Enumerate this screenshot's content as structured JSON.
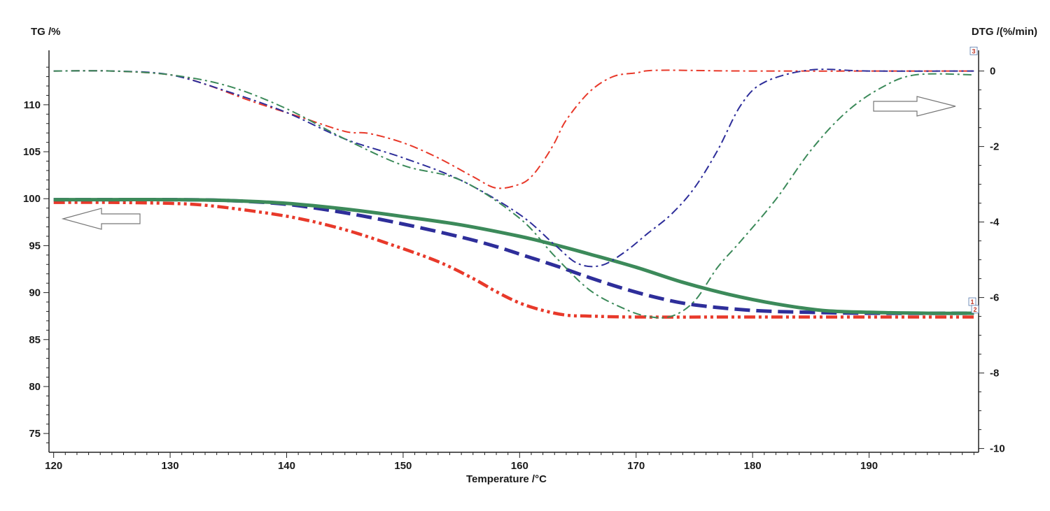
{
  "chart_data": {
    "type": "line",
    "title": "",
    "xlabel": "Temperature /°C",
    "ylabel": "TG /%",
    "y2label": "DTG /(%/min)",
    "xlim": [
      119.6,
      199.4
    ],
    "ylim": [
      73,
      115.2
    ],
    "y2lim": [
      -10.1,
      0.4
    ],
    "x_ticks": [
      120,
      130,
      140,
      150,
      160,
      170,
      180,
      190
    ],
    "y_ticks": [
      75,
      80,
      85,
      90,
      95,
      100,
      105,
      110
    ],
    "y2_ticks": [
      -10,
      -8,
      -6,
      -4,
      -2,
      0
    ],
    "grid": false,
    "legend": "none",
    "series": [
      {
        "axis": "left",
        "color": "#e8392a",
        "style": "dash-dot-dot",
        "x": [
          120,
          125,
          130,
          133,
          137,
          141,
          145,
          149,
          153,
          156,
          158,
          160,
          162,
          164,
          166,
          170,
          180,
          190,
          199
        ],
        "y": [
          99.6,
          99.6,
          99.5,
          99.3,
          98.7,
          97.9,
          96.7,
          95.1,
          93.3,
          91.5,
          90.1,
          88.9,
          88.1,
          87.6,
          87.5,
          87.4,
          87.4,
          87.4,
          87.4
        ]
      },
      {
        "axis": "left",
        "color": "#2e2e9a",
        "style": "dash",
        "x": [
          120,
          125,
          130,
          135,
          140,
          145,
          150,
          155,
          158,
          160,
          163,
          166,
          169,
          172,
          175,
          180,
          185,
          190,
          199
        ],
        "y": [
          99.9,
          99.9,
          99.9,
          99.8,
          99.4,
          98.5,
          97.3,
          95.9,
          94.9,
          94.1,
          92.9,
          91.6,
          90.4,
          89.4,
          88.7,
          88.1,
          87.9,
          87.8,
          87.8
        ]
      },
      {
        "axis": "left",
        "color": "#3c8a5a",
        "style": "solid",
        "x": [
          120,
          125,
          130,
          135,
          140,
          145,
          150,
          155,
          160,
          163,
          166,
          170,
          174,
          178,
          182,
          186,
          190,
          195,
          199
        ],
        "y": [
          99.9,
          99.9,
          99.9,
          99.8,
          99.5,
          98.9,
          98.1,
          97.2,
          96.0,
          95.1,
          94.1,
          92.7,
          91.1,
          89.8,
          88.8,
          88.1,
          87.9,
          87.8,
          87.8
        ]
      },
      {
        "axis": "right",
        "color": "#e8392a",
        "style": "dash-dot",
        "x": [
          120,
          125,
          130,
          133,
          137,
          141,
          145,
          147,
          150,
          153,
          156,
          158,
          160,
          161,
          162,
          163,
          164,
          166,
          168,
          170,
          172,
          180,
          199
        ],
        "y": [
          0.0,
          0.0,
          -0.1,
          -0.35,
          -0.8,
          -1.2,
          -1.6,
          -1.65,
          -1.9,
          -2.3,
          -2.8,
          -3.1,
          -3.0,
          -2.8,
          -2.4,
          -1.9,
          -1.3,
          -0.55,
          -0.15,
          -0.05,
          0.02,
          0.0,
          0.0
        ]
      },
      {
        "axis": "right",
        "color": "#2e2e9a",
        "style": "dash-dot",
        "x": [
          120,
          125,
          130,
          135,
          140,
          145,
          150,
          155,
          160,
          163,
          165,
          167,
          169,
          171,
          173,
          175,
          177,
          179,
          181,
          185,
          190,
          199
        ],
        "y": [
          0.0,
          0.0,
          -0.1,
          -0.55,
          -1.1,
          -1.8,
          -2.3,
          -2.9,
          -3.8,
          -4.6,
          -5.1,
          -5.15,
          -4.8,
          -4.3,
          -3.8,
          -3.1,
          -2.1,
          -0.9,
          -0.3,
          0.03,
          0.0,
          0.0
        ]
      },
      {
        "axis": "right",
        "color": "#3c8a5a",
        "style": "dash-dot",
        "x": [
          120,
          125,
          130,
          135,
          140,
          145,
          150,
          155,
          160,
          163,
          166,
          169,
          171,
          173,
          175,
          177,
          179,
          182,
          185,
          188,
          191,
          194,
          199
        ],
        "y": [
          0.0,
          0.0,
          -0.1,
          -0.4,
          -1.0,
          -1.8,
          -2.5,
          -2.9,
          -3.9,
          -4.9,
          -5.8,
          -6.3,
          -6.5,
          -6.5,
          -6.1,
          -5.2,
          -4.5,
          -3.4,
          -2.1,
          -1.1,
          -0.45,
          -0.1,
          -0.1
        ]
      }
    ],
    "annotations": [
      {
        "type": "arrow",
        "direction": "left",
        "meaning": "TG curves read on left axis"
      },
      {
        "type": "arrow",
        "direction": "right",
        "meaning": "DTG curves read on right axis"
      }
    ],
    "end_markers": [
      "3",
      "1",
      "2"
    ]
  }
}
